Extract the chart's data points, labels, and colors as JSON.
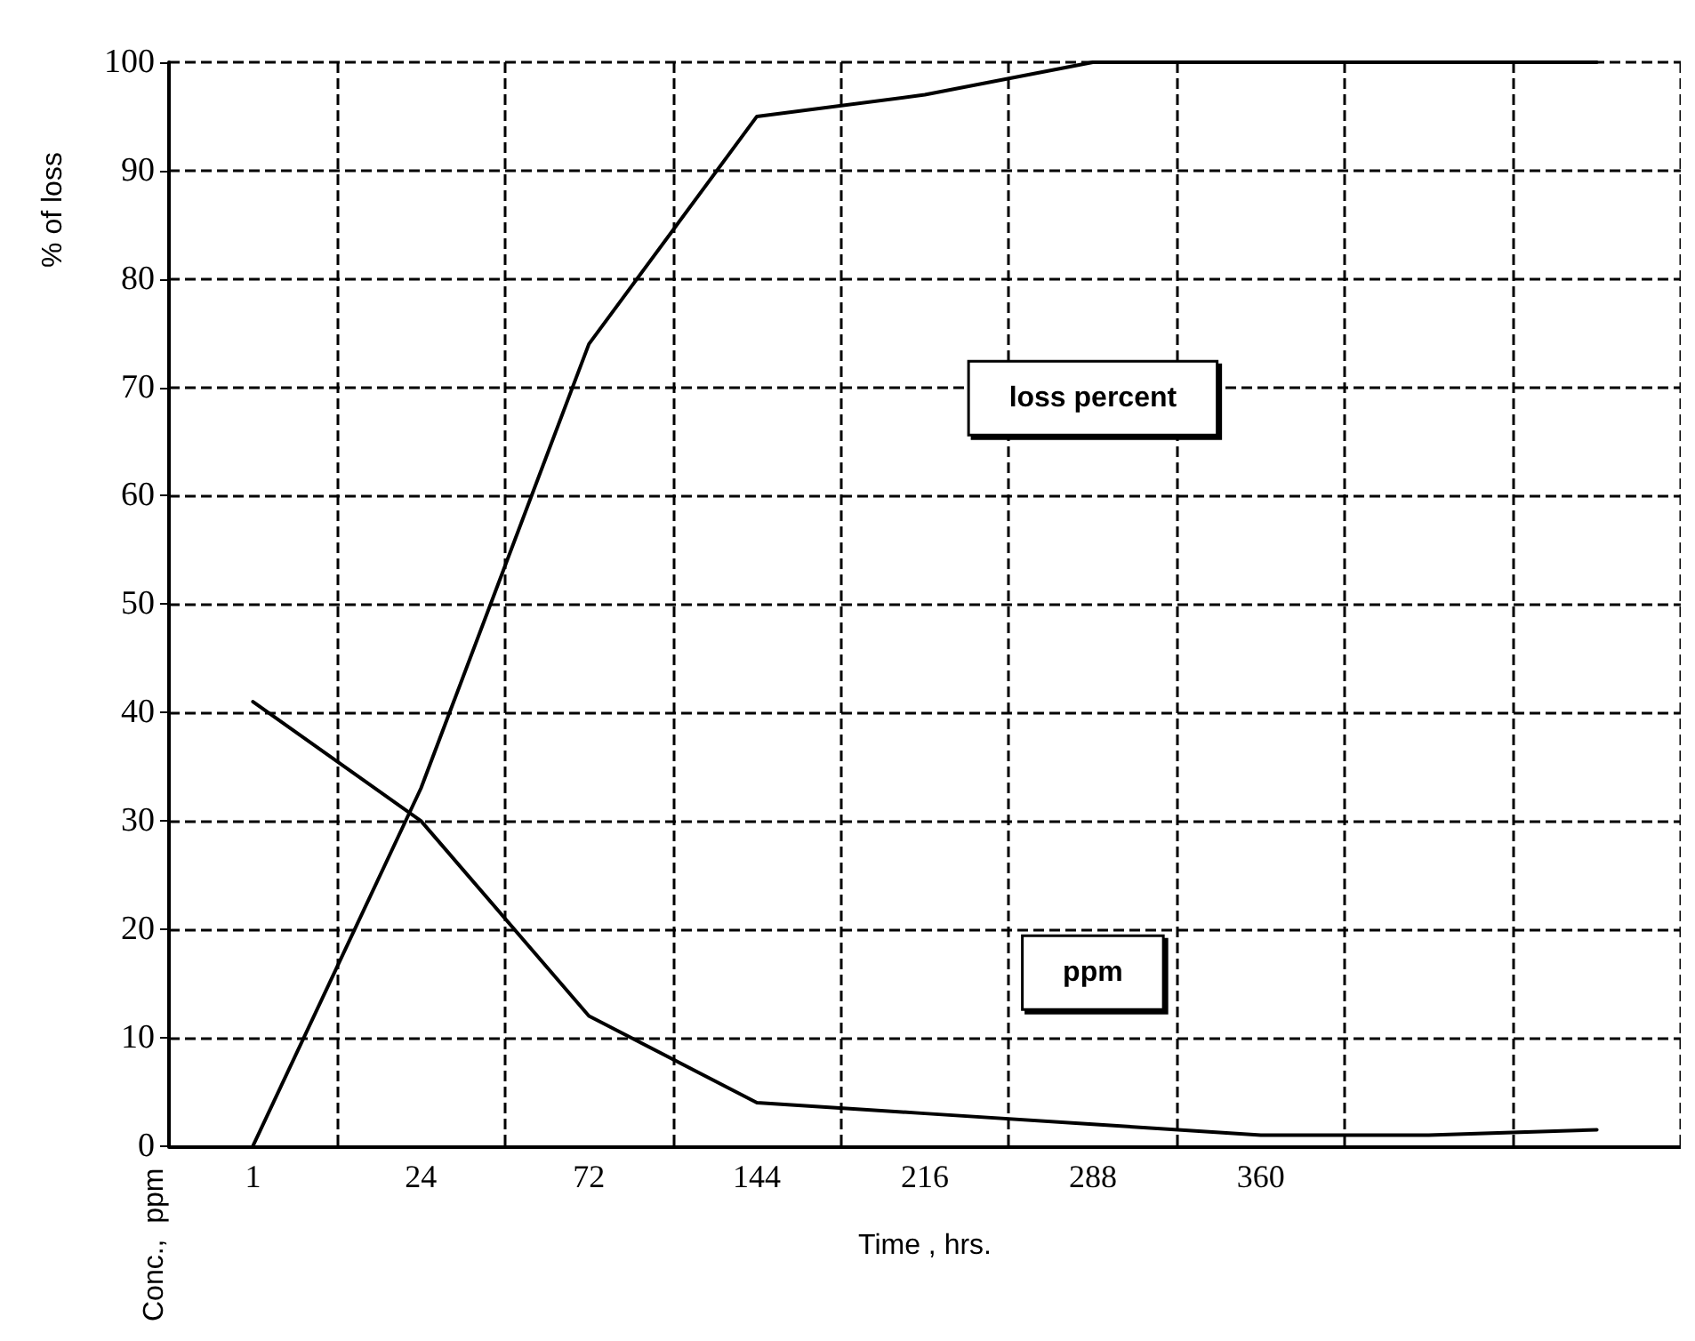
{
  "chart_data": {
    "type": "line",
    "xlabel": "Time , hrs.",
    "ylabel": "Conc.,  ppm",
    "annotations": [
      "% of loss"
    ],
    "categories": [
      "1",
      "24",
      "72",
      "144",
      "216",
      "288",
      "360",
      null,
      null
    ],
    "series": [
      {
        "name": "loss percent",
        "color": "#000000",
        "values": [
          0,
          33,
          74,
          95,
          97,
          100,
          100,
          100,
          100
        ]
      },
      {
        "name": "ppm",
        "color": "#000000",
        "values": [
          41,
          30,
          12,
          4,
          3,
          2,
          1,
          1,
          1.5
        ]
      }
    ],
    "ylim": [
      0,
      100
    ],
    "yticks": [
      0,
      10,
      20,
      30,
      40,
      50,
      60,
      70,
      80,
      90,
      100
    ],
    "grid": true,
    "legend": false,
    "marker": "none",
    "line_style": "solid"
  }
}
